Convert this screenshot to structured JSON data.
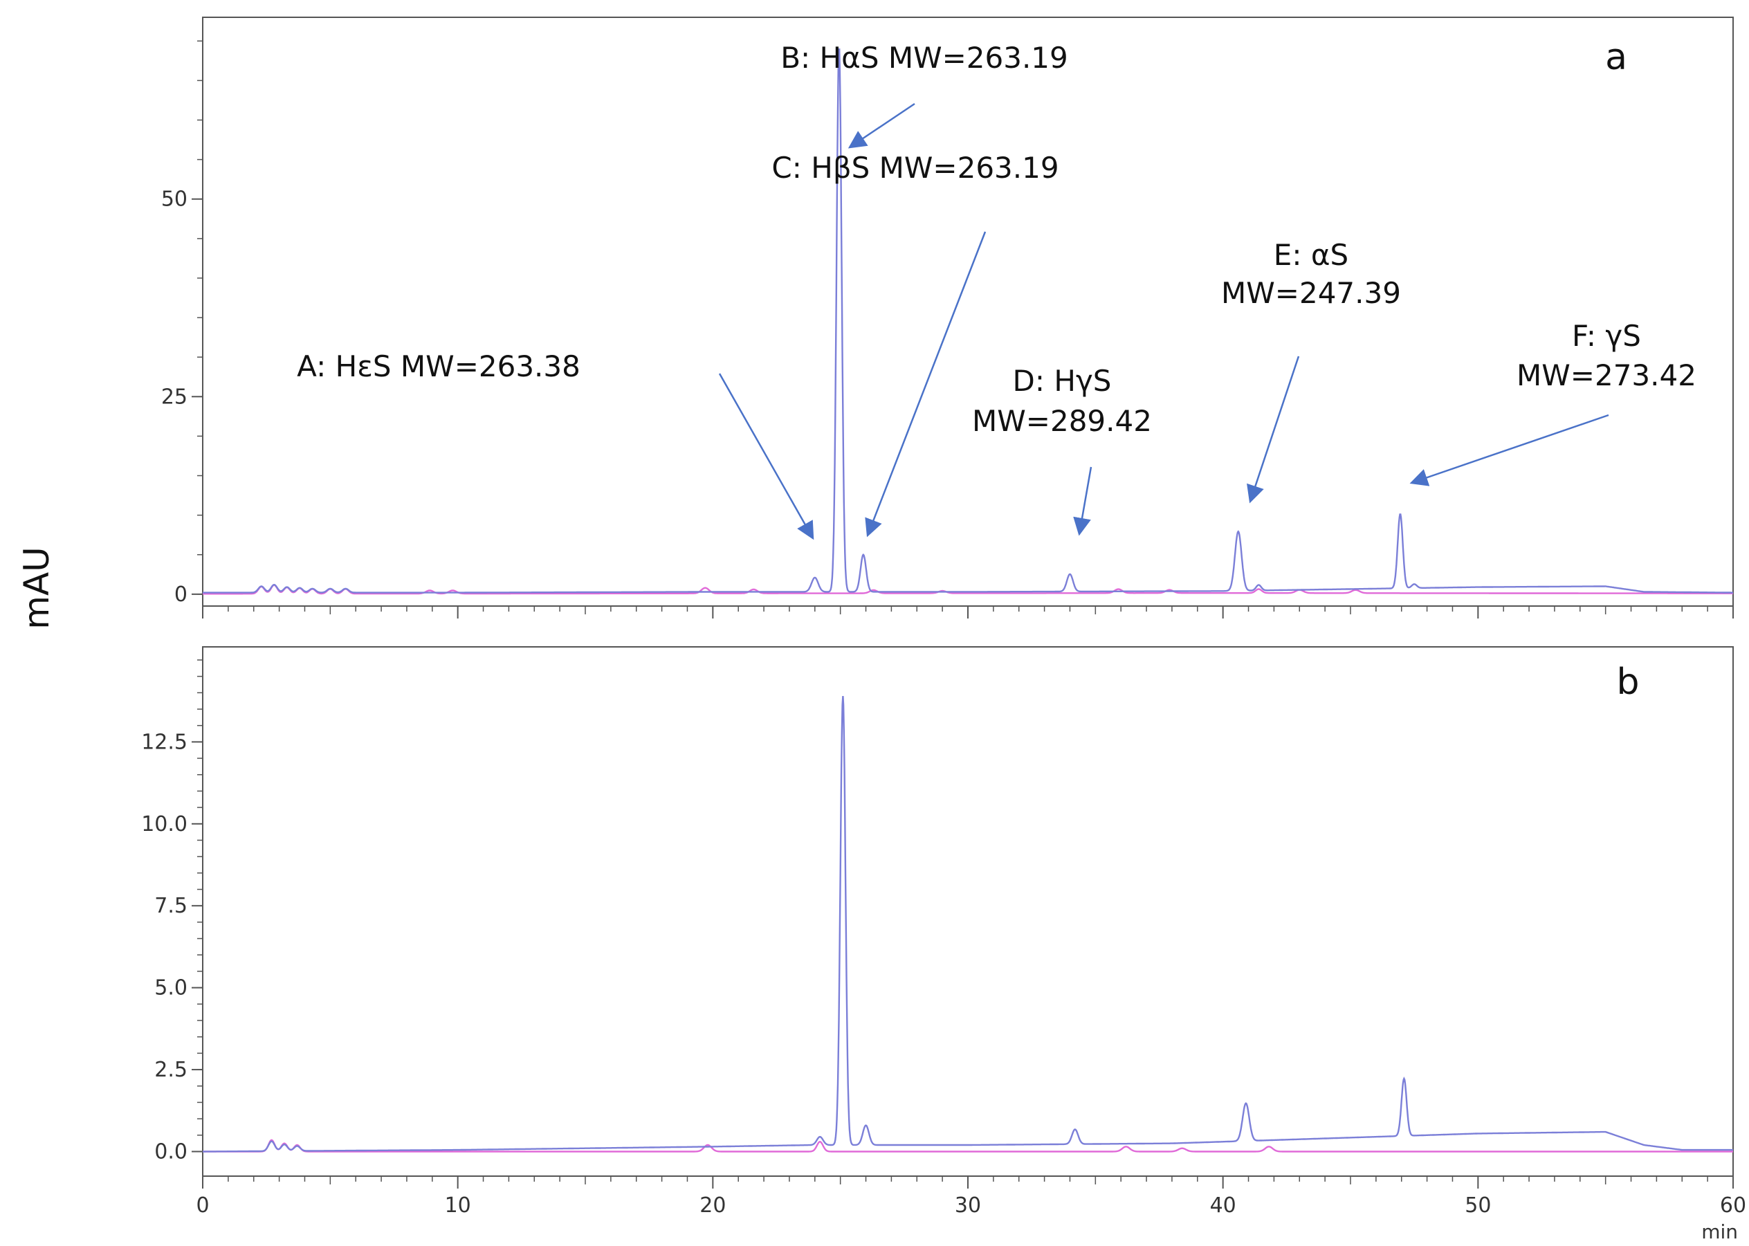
{
  "figure": {
    "ylabel": "mAU",
    "x_unit": "min"
  },
  "chart_data": [
    {
      "type": "line",
      "panel": "a",
      "xlim": [
        0,
        60
      ],
      "ylim": [
        -1.5,
        73
      ],
      "y_ticks": [
        0,
        25,
        50
      ],
      "x_tick_labels_shown": false,
      "grid": false,
      "series": [
        {
          "color": "#7b7fd8",
          "baseline": [
            [
              0,
              0.2
            ],
            [
              10,
              0.2
            ],
            [
              20,
              0.3
            ],
            [
              30,
              0.3
            ],
            [
              40,
              0.4
            ],
            [
              50,
              0.9
            ],
            [
              55,
              1.0
            ],
            [
              56.5,
              0.3
            ],
            [
              60,
              0.2
            ]
          ],
          "peaks": [
            [
              2.3,
              0.8,
              0.12
            ],
            [
              2.8,
              1.0,
              0.12
            ],
            [
              3.3,
              0.7,
              0.12
            ],
            [
              3.8,
              0.6,
              0.12
            ],
            [
              4.3,
              0.5,
              0.12
            ],
            [
              5.0,
              0.5,
              0.12
            ],
            [
              5.6,
              0.5,
              0.12
            ],
            [
              24.0,
              1.8,
              0.13
            ],
            [
              24.95,
              69.0,
              0.1
            ],
            [
              25.9,
              4.7,
              0.11
            ],
            [
              34.0,
              2.2,
              0.12
            ],
            [
              40.6,
              7.5,
              0.13
            ],
            [
              41.4,
              0.7,
              0.1
            ],
            [
              46.95,
              9.4,
              0.1
            ],
            [
              47.5,
              0.5,
              0.1
            ]
          ]
        },
        {
          "color": "#e06ad8",
          "baseline": [
            [
              0,
              0.05
            ],
            [
              20,
              0.1
            ],
            [
              40,
              0.15
            ],
            [
              60,
              0.1
            ]
          ],
          "peaks": [
            [
              2.3,
              0.9,
              0.12
            ],
            [
              2.8,
              1.1,
              0.12
            ],
            [
              3.3,
              0.8,
              0.12
            ],
            [
              3.8,
              0.7,
              0.12
            ],
            [
              4.3,
              0.6,
              0.12
            ],
            [
              5.0,
              0.6,
              0.12
            ],
            [
              5.6,
              0.6,
              0.12
            ],
            [
              8.9,
              0.4,
              0.15
            ],
            [
              9.8,
              0.4,
              0.15
            ],
            [
              19.7,
              0.7,
              0.15
            ],
            [
              21.6,
              0.5,
              0.15
            ],
            [
              26.3,
              0.4,
              0.15
            ],
            [
              29.0,
              0.3,
              0.15
            ],
            [
              35.9,
              0.5,
              0.15
            ],
            [
              37.9,
              0.4,
              0.15
            ],
            [
              41.4,
              0.5,
              0.12
            ],
            [
              43.0,
              0.4,
              0.15
            ],
            [
              45.2,
              0.4,
              0.15
            ]
          ]
        }
      ],
      "annotations": [
        {
          "id": "A",
          "lines": [
            "A: HεS  MW=263.38"
          ],
          "x": 24.0
        },
        {
          "id": "B",
          "lines": [
            "B: HαS MW=263.19"
          ],
          "x": 24.95
        },
        {
          "id": "C",
          "lines": [
            "C: HβS  MW=263.19"
          ],
          "x": 25.9
        },
        {
          "id": "D",
          "lines": [
            "D: HγS",
            "MW=289.42"
          ],
          "x": 34.0
        },
        {
          "id": "E",
          "lines": [
            "E: αS",
            "MW=247.39"
          ],
          "x": 40.6
        },
        {
          "id": "F",
          "lines": [
            "F: γS",
            "MW=273.42"
          ],
          "x": 46.95
        }
      ]
    },
    {
      "type": "line",
      "panel": "b",
      "xlim": [
        0,
        60
      ],
      "ylim": [
        -0.75,
        15.4
      ],
      "y_ticks": [
        0.0,
        2.5,
        5.0,
        7.5,
        10.0,
        12.5
      ],
      "y_tick_labels": [
        "0.0",
        "2.5",
        "5.0",
        "7.5",
        "10.0",
        "12.5"
      ],
      "x_ticks": [
        0,
        10,
        20,
        30,
        40,
        50,
        60
      ],
      "grid": false,
      "series": [
        {
          "color": "#7b7fd8",
          "baseline": [
            [
              0,
              0.0
            ],
            [
              10,
              0.05
            ],
            [
              20,
              0.15
            ],
            [
              24,
              0.2
            ],
            [
              30,
              0.2
            ],
            [
              38,
              0.25
            ],
            [
              42,
              0.35
            ],
            [
              46,
              0.45
            ],
            [
              50,
              0.55
            ],
            [
              55,
              0.6
            ],
            [
              56.5,
              0.2
            ],
            [
              58,
              0.05
            ],
            [
              60,
              0.05
            ]
          ],
          "peaks": [
            [
              2.7,
              0.3,
              0.12
            ],
            [
              3.2,
              0.2,
              0.12
            ],
            [
              3.7,
              0.15,
              0.12
            ],
            [
              24.2,
              0.25,
              0.12
            ],
            [
              25.1,
              13.7,
              0.1
            ],
            [
              26.0,
              0.6,
              0.12
            ],
            [
              34.2,
              0.45,
              0.12
            ],
            [
              40.9,
              1.15,
              0.13
            ],
            [
              47.1,
              1.75,
              0.1
            ]
          ]
        },
        {
          "color": "#e06ad8",
          "baseline": [
            [
              0,
              0.0
            ],
            [
              20,
              0.0
            ],
            [
              40,
              0.0
            ],
            [
              60,
              0.0
            ]
          ],
          "peaks": [
            [
              2.7,
              0.35,
              0.12
            ],
            [
              3.2,
              0.25,
              0.12
            ],
            [
              3.7,
              0.2,
              0.12
            ],
            [
              19.8,
              0.2,
              0.15
            ],
            [
              24.2,
              0.3,
              0.12
            ],
            [
              36.2,
              0.15,
              0.15
            ],
            [
              38.4,
              0.1,
              0.15
            ],
            [
              41.8,
              0.15,
              0.15
            ]
          ]
        }
      ]
    }
  ]
}
